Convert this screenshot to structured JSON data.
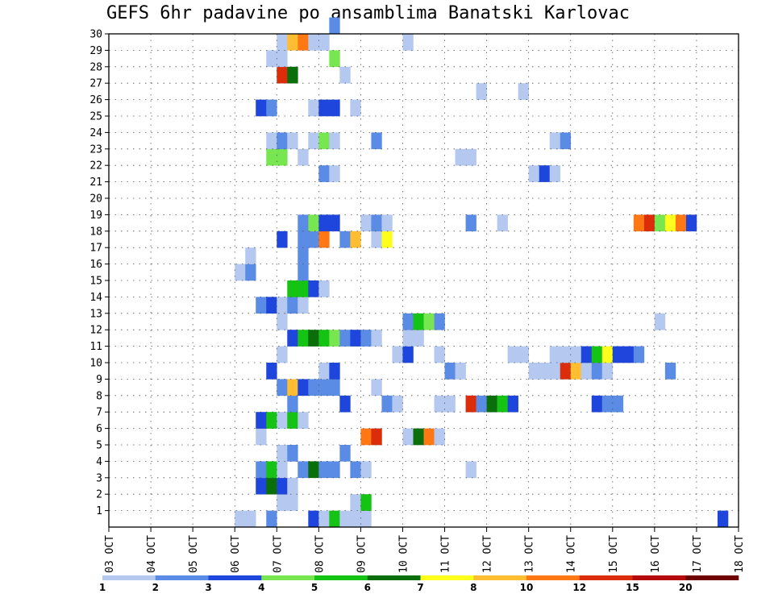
{
  "chart_data": {
    "type": "heatmap",
    "title": "GEFS 6hr padavine po ansamblima Banatski Karlovac",
    "x_tick_labels": [
      "03 OCT",
      "04 OCT",
      "05 OCT",
      "06 OCT",
      "07 OCT",
      "08 OCT",
      "09 OCT",
      "10 OCT",
      "11 OCT",
      "12 OCT",
      "13 OCT",
      "14 OCT",
      "15 OCT",
      "16 OCT",
      "17 OCT",
      "18 OCT"
    ],
    "x_range_days": [
      0,
      15
    ],
    "x_step_hours": 6,
    "y_tick_labels": [
      1,
      2,
      3,
      4,
      5,
      6,
      7,
      8,
      9,
      10,
      11,
      12,
      13,
      14,
      15,
      16,
      17,
      18,
      19,
      20,
      21,
      22,
      23,
      24,
      25,
      26,
      27,
      28,
      29,
      30
    ],
    "y_range": [
      0,
      30
    ],
    "grid": "dotted",
    "legend": {
      "placement": "bottom",
      "labels": [
        "1",
        "2",
        "3",
        "4",
        "5",
        "6",
        "7",
        "8",
        "10",
        "12",
        "15",
        "20"
      ],
      "colors": [
        "#b4c8f0",
        "#5a8ce6",
        "#1e46dc",
        "#78e650",
        "#14c314",
        "#0a6e0a",
        "#ffff1e",
        "#ffbe32",
        "#ff7814",
        "#dc2d0a",
        "#b40a0a",
        "#6e0000"
      ]
    },
    "cells": [
      [
        0,
        12,
        13,
        1
      ],
      [
        0,
        15,
        15,
        2
      ],
      [
        0,
        19,
        19,
        3
      ],
      [
        0,
        20,
        20,
        1
      ],
      [
        0,
        21,
        21,
        5
      ],
      [
        0,
        22,
        24,
        1
      ],
      [
        0,
        58,
        58,
        3
      ],
      [
        1,
        16,
        17,
        1
      ],
      [
        1,
        23,
        23,
        1
      ],
      [
        1,
        24,
        24,
        5
      ],
      [
        2,
        14,
        14,
        3
      ],
      [
        2,
        15,
        15,
        6
      ],
      [
        2,
        16,
        16,
        3
      ],
      [
        2,
        17,
        17,
        1
      ],
      [
        3,
        14,
        14,
        2
      ],
      [
        3,
        15,
        15,
        5
      ],
      [
        3,
        16,
        16,
        1
      ],
      [
        3,
        18,
        18,
        2
      ],
      [
        3,
        19,
        19,
        6
      ],
      [
        3,
        20,
        21,
        2
      ],
      [
        3,
        23,
        23,
        2
      ],
      [
        3,
        24,
        24,
        1
      ],
      [
        3,
        34,
        34,
        1
      ],
      [
        4,
        16,
        16,
        1
      ],
      [
        4,
        17,
        17,
        2
      ],
      [
        4,
        22,
        22,
        2
      ],
      [
        5,
        14,
        14,
        1
      ],
      [
        5,
        24,
        24,
        9
      ],
      [
        5,
        25,
        25,
        10
      ],
      [
        5,
        28,
        28,
        1
      ],
      [
        5,
        29,
        29,
        6
      ],
      [
        5,
        30,
        30,
        9
      ],
      [
        5,
        31,
        31,
        1
      ],
      [
        6,
        14,
        14,
        3
      ],
      [
        6,
        15,
        15,
        5
      ],
      [
        6,
        16,
        16,
        1
      ],
      [
        6,
        17,
        17,
        5
      ],
      [
        6,
        18,
        18,
        1
      ],
      [
        7,
        17,
        17,
        2
      ],
      [
        7,
        22,
        22,
        3
      ],
      [
        7,
        26,
        26,
        2
      ],
      [
        7,
        27,
        27,
        1
      ],
      [
        7,
        31,
        32,
        1
      ],
      [
        7,
        34,
        34,
        10
      ],
      [
        7,
        35,
        35,
        2
      ],
      [
        7,
        36,
        36,
        6
      ],
      [
        7,
        37,
        37,
        5
      ],
      [
        7,
        38,
        38,
        3
      ],
      [
        7,
        46,
        46,
        3
      ],
      [
        7,
        47,
        48,
        2
      ],
      [
        8,
        16,
        16,
        2
      ],
      [
        8,
        17,
        17,
        8
      ],
      [
        8,
        18,
        18,
        3
      ],
      [
        8,
        19,
        21,
        2
      ],
      [
        8,
        25,
        25,
        1
      ],
      [
        9,
        15,
        15,
        3
      ],
      [
        9,
        20,
        20,
        1
      ],
      [
        9,
        21,
        21,
        3
      ],
      [
        9,
        32,
        32,
        2
      ],
      [
        9,
        33,
        33,
        1
      ],
      [
        9,
        40,
        42,
        1
      ],
      [
        9,
        43,
        43,
        10
      ],
      [
        9,
        44,
        44,
        8
      ],
      [
        9,
        45,
        45,
        1
      ],
      [
        9,
        46,
        46,
        2
      ],
      [
        9,
        47,
        47,
        1
      ],
      [
        9,
        53,
        53,
        2
      ],
      [
        10,
        16,
        16,
        1
      ],
      [
        10,
        27,
        27,
        1
      ],
      [
        10,
        28,
        28,
        3
      ],
      [
        10,
        31,
        31,
        1
      ],
      [
        10,
        38,
        39,
        1
      ],
      [
        10,
        42,
        44,
        1
      ],
      [
        10,
        45,
        45,
        3
      ],
      [
        10,
        46,
        46,
        5
      ],
      [
        10,
        47,
        47,
        7
      ],
      [
        10,
        48,
        49,
        3
      ],
      [
        10,
        50,
        50,
        2
      ],
      [
        11,
        17,
        17,
        3
      ],
      [
        11,
        18,
        18,
        5
      ],
      [
        11,
        19,
        19,
        6
      ],
      [
        11,
        20,
        20,
        5
      ],
      [
        11,
        21,
        21,
        4
      ],
      [
        11,
        22,
        22,
        2
      ],
      [
        11,
        23,
        23,
        3
      ],
      [
        11,
        24,
        24,
        2
      ],
      [
        11,
        25,
        25,
        1
      ],
      [
        11,
        28,
        29,
        1
      ],
      [
        12,
        16,
        16,
        1
      ],
      [
        12,
        28,
        28,
        2
      ],
      [
        12,
        29,
        29,
        5
      ],
      [
        12,
        30,
        30,
        4
      ],
      [
        12,
        31,
        31,
        2
      ],
      [
        12,
        52,
        52,
        1
      ],
      [
        13,
        14,
        14,
        2
      ],
      [
        13,
        15,
        15,
        3
      ],
      [
        13,
        16,
        16,
        1
      ],
      [
        13,
        17,
        17,
        2
      ],
      [
        13,
        18,
        18,
        1
      ],
      [
        14,
        17,
        18,
        5
      ],
      [
        14,
        19,
        19,
        3
      ],
      [
        14,
        20,
        20,
        1
      ],
      [
        15,
        12,
        12,
        1
      ],
      [
        15,
        13,
        13,
        2
      ],
      [
        15,
        18,
        18,
        2
      ],
      [
        16,
        13,
        13,
        1
      ],
      [
        16,
        18,
        18,
        2
      ],
      [
        17,
        16,
        16,
        3
      ],
      [
        17,
        18,
        19,
        2
      ],
      [
        17,
        20,
        20,
        9
      ],
      [
        17,
        22,
        22,
        2
      ],
      [
        17,
        23,
        23,
        8
      ],
      [
        17,
        25,
        25,
        1
      ],
      [
        17,
        26,
        26,
        7
      ],
      [
        18,
        18,
        18,
        2
      ],
      [
        18,
        19,
        19,
        4
      ],
      [
        18,
        20,
        21,
        3
      ],
      [
        18,
        24,
        24,
        1
      ],
      [
        18,
        25,
        25,
        2
      ],
      [
        18,
        26,
        26,
        1
      ],
      [
        18,
        34,
        34,
        2
      ],
      [
        18,
        37,
        37,
        1
      ],
      [
        18,
        50,
        50,
        9
      ],
      [
        18,
        51,
        51,
        10
      ],
      [
        18,
        52,
        52,
        4
      ],
      [
        18,
        53,
        53,
        7
      ],
      [
        18,
        54,
        54,
        9
      ],
      [
        18,
        55,
        55,
        3
      ],
      [
        21,
        20,
        20,
        2
      ],
      [
        21,
        21,
        21,
        1
      ],
      [
        21,
        40,
        40,
        1
      ],
      [
        21,
        41,
        41,
        3
      ],
      [
        21,
        42,
        42,
        1
      ],
      [
        22,
        15,
        16,
        4
      ],
      [
        22,
        18,
        18,
        1
      ],
      [
        22,
        33,
        34,
        1
      ],
      [
        23,
        15,
        15,
        1
      ],
      [
        23,
        16,
        16,
        2
      ],
      [
        23,
        17,
        17,
        1
      ],
      [
        23,
        19,
        19,
        1
      ],
      [
        23,
        20,
        20,
        4
      ],
      [
        23,
        21,
        21,
        1
      ],
      [
        23,
        25,
        25,
        2
      ],
      [
        23,
        42,
        42,
        1
      ],
      [
        23,
        43,
        43,
        2
      ],
      [
        25,
        14,
        14,
        3
      ],
      [
        25,
        15,
        15,
        2
      ],
      [
        25,
        19,
        19,
        1
      ],
      [
        25,
        20,
        21,
        3
      ],
      [
        25,
        23,
        23,
        1
      ],
      [
        26,
        35,
        35,
        1
      ],
      [
        26,
        39,
        39,
        1
      ],
      [
        27,
        16,
        16,
        10
      ],
      [
        27,
        17,
        17,
        6
      ],
      [
        27,
        22,
        22,
        1
      ],
      [
        28,
        15,
        16,
        1
      ],
      [
        28,
        21,
        21,
        4
      ],
      [
        29,
        16,
        16,
        1
      ],
      [
        29,
        17,
        17,
        8
      ],
      [
        29,
        18,
        18,
        9
      ],
      [
        29,
        19,
        20,
        1
      ],
      [
        29,
        28,
        28,
        1
      ],
      [
        30,
        21,
        21,
        2
      ]
    ]
  }
}
